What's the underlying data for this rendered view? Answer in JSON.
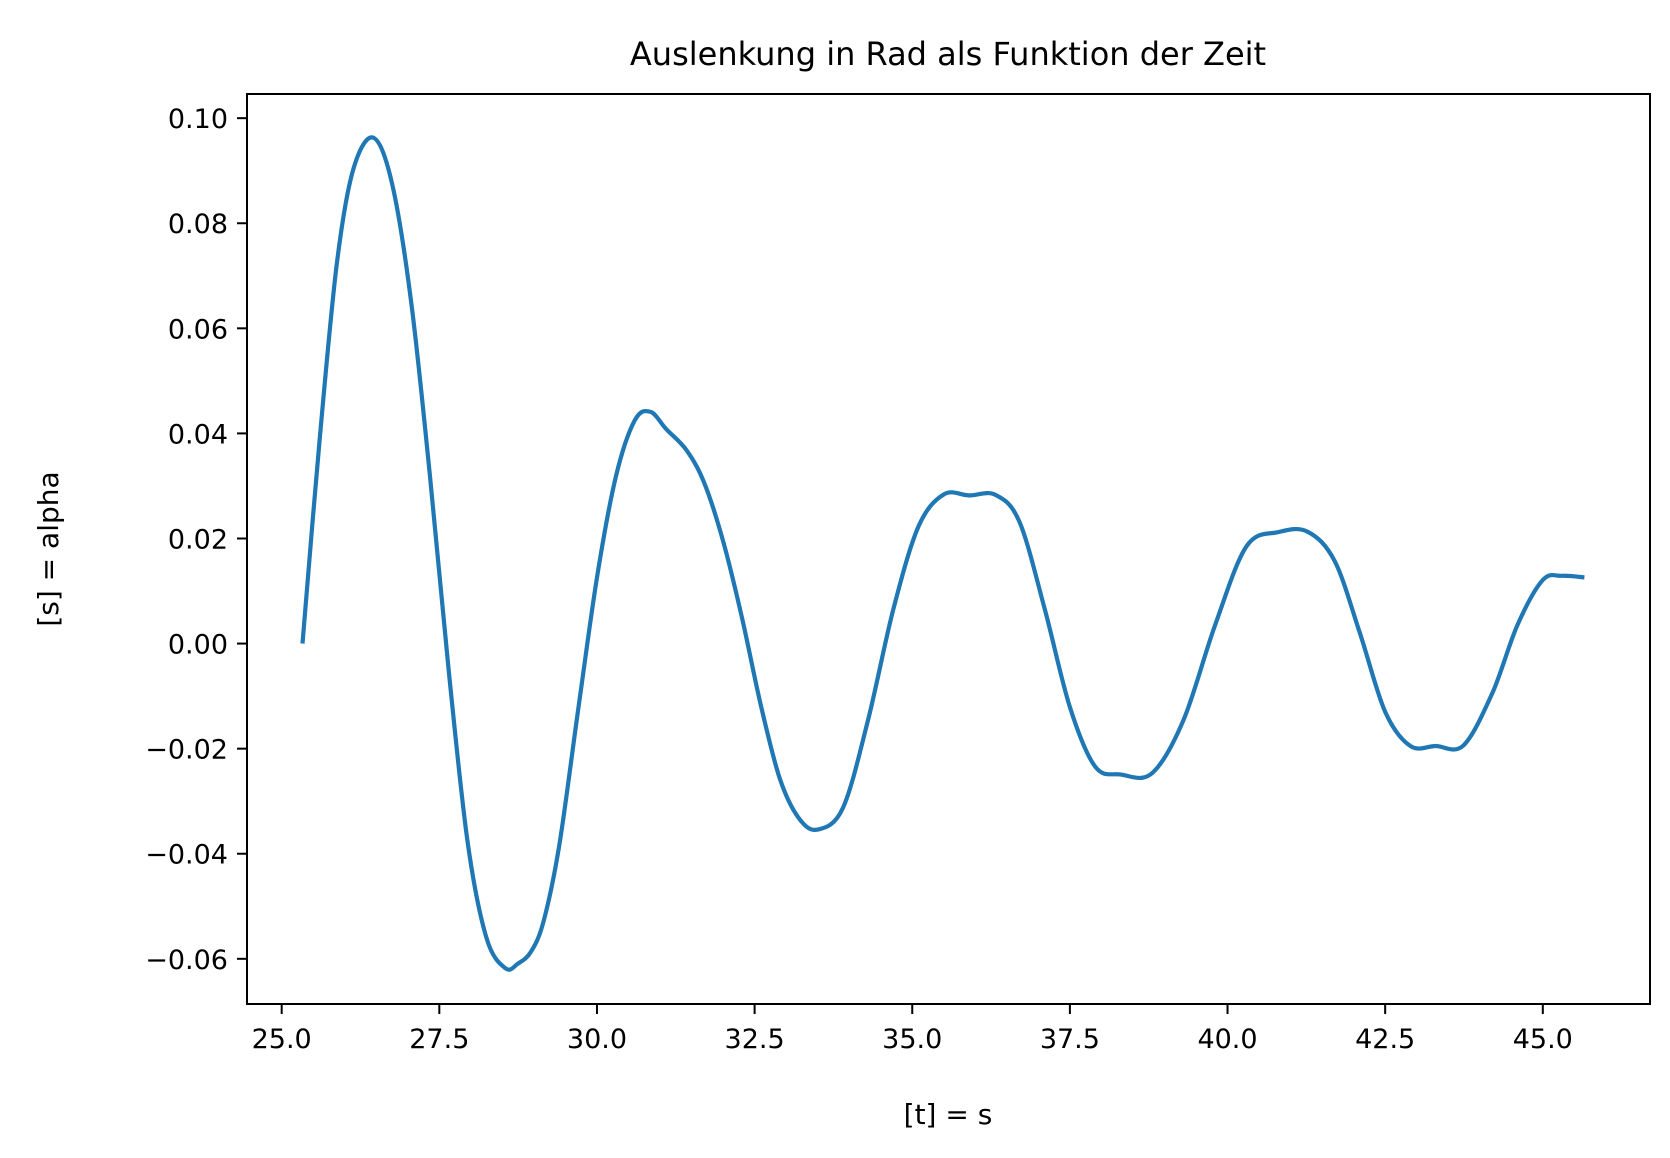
{
  "chart_data": {
    "type": "line",
    "title": "Auslenkung in Rad als Funktion der Zeit",
    "xlabel": "[t] = s",
    "ylabel": "[s] = alpha",
    "xlim": [
      24.45,
      46.7
    ],
    "ylim": [
      -0.0686,
      0.1046
    ],
    "xticks": [
      25.0,
      27.5,
      30.0,
      32.5,
      35.0,
      37.5,
      40.0,
      42.5,
      45.0
    ],
    "xtick_labels": [
      "25.0",
      "27.5",
      "30.0",
      "32.5",
      "35.0",
      "37.5",
      "40.0",
      "42.5",
      "45.0"
    ],
    "yticks": [
      -0.06,
      -0.04,
      -0.02,
      0.0,
      0.02,
      0.04,
      0.06,
      0.08,
      0.1
    ],
    "ytick_labels": [
      "−0.06",
      "−0.04",
      "−0.02",
      "0.00",
      "0.02",
      "0.04",
      "0.06",
      "0.08",
      "0.10"
    ],
    "grid": false,
    "series": [
      {
        "color": "#1f77b4",
        "x": [
          25.33,
          25.6,
          25.87,
          26.13,
          26.45,
          26.75,
          27.05,
          27.35,
          27.65,
          27.95,
          28.25,
          28.55,
          28.75,
          28.95,
          29.15,
          29.4,
          29.7,
          30.0,
          30.3,
          30.6,
          30.85,
          31.1,
          31.42,
          31.7,
          32.0,
          32.3,
          32.6,
          32.9,
          33.2,
          33.5,
          33.9,
          34.3,
          34.7,
          35.1,
          35.5,
          35.9,
          36.32,
          36.7,
          37.1,
          37.5,
          37.9,
          38.3,
          38.8,
          39.3,
          39.8,
          40.3,
          40.8,
          41.27,
          41.7,
          42.1,
          42.5,
          42.9,
          43.3,
          43.74,
          44.2,
          44.6,
          45.0,
          45.3,
          45.66
        ],
        "y": [
          0.0,
          0.0385,
          0.0718,
          0.09,
          0.0963,
          0.0876,
          0.0654,
          0.032,
          -0.0053,
          -0.0379,
          -0.0561,
          -0.0618,
          -0.0609,
          -0.0587,
          -0.053,
          -0.0386,
          -0.0128,
          0.0126,
          0.0318,
          0.0425,
          0.0441,
          0.0408,
          0.0368,
          0.0306,
          0.0195,
          0.0049,
          -0.0118,
          -0.0257,
          -0.0332,
          -0.0354,
          -0.0313,
          -0.0145,
          0.0065,
          0.0223,
          0.0284,
          0.0282,
          0.0283,
          0.0232,
          0.0066,
          -0.0121,
          -0.0234,
          -0.0249,
          -0.0247,
          -0.0146,
          0.0034,
          0.0185,
          0.0212,
          0.0213,
          0.0157,
          0.002,
          -0.013,
          -0.0195,
          -0.0195,
          -0.0194,
          -0.0094,
          0.0036,
          0.0121,
          0.0129,
          0.0126
        ]
      }
    ]
  }
}
